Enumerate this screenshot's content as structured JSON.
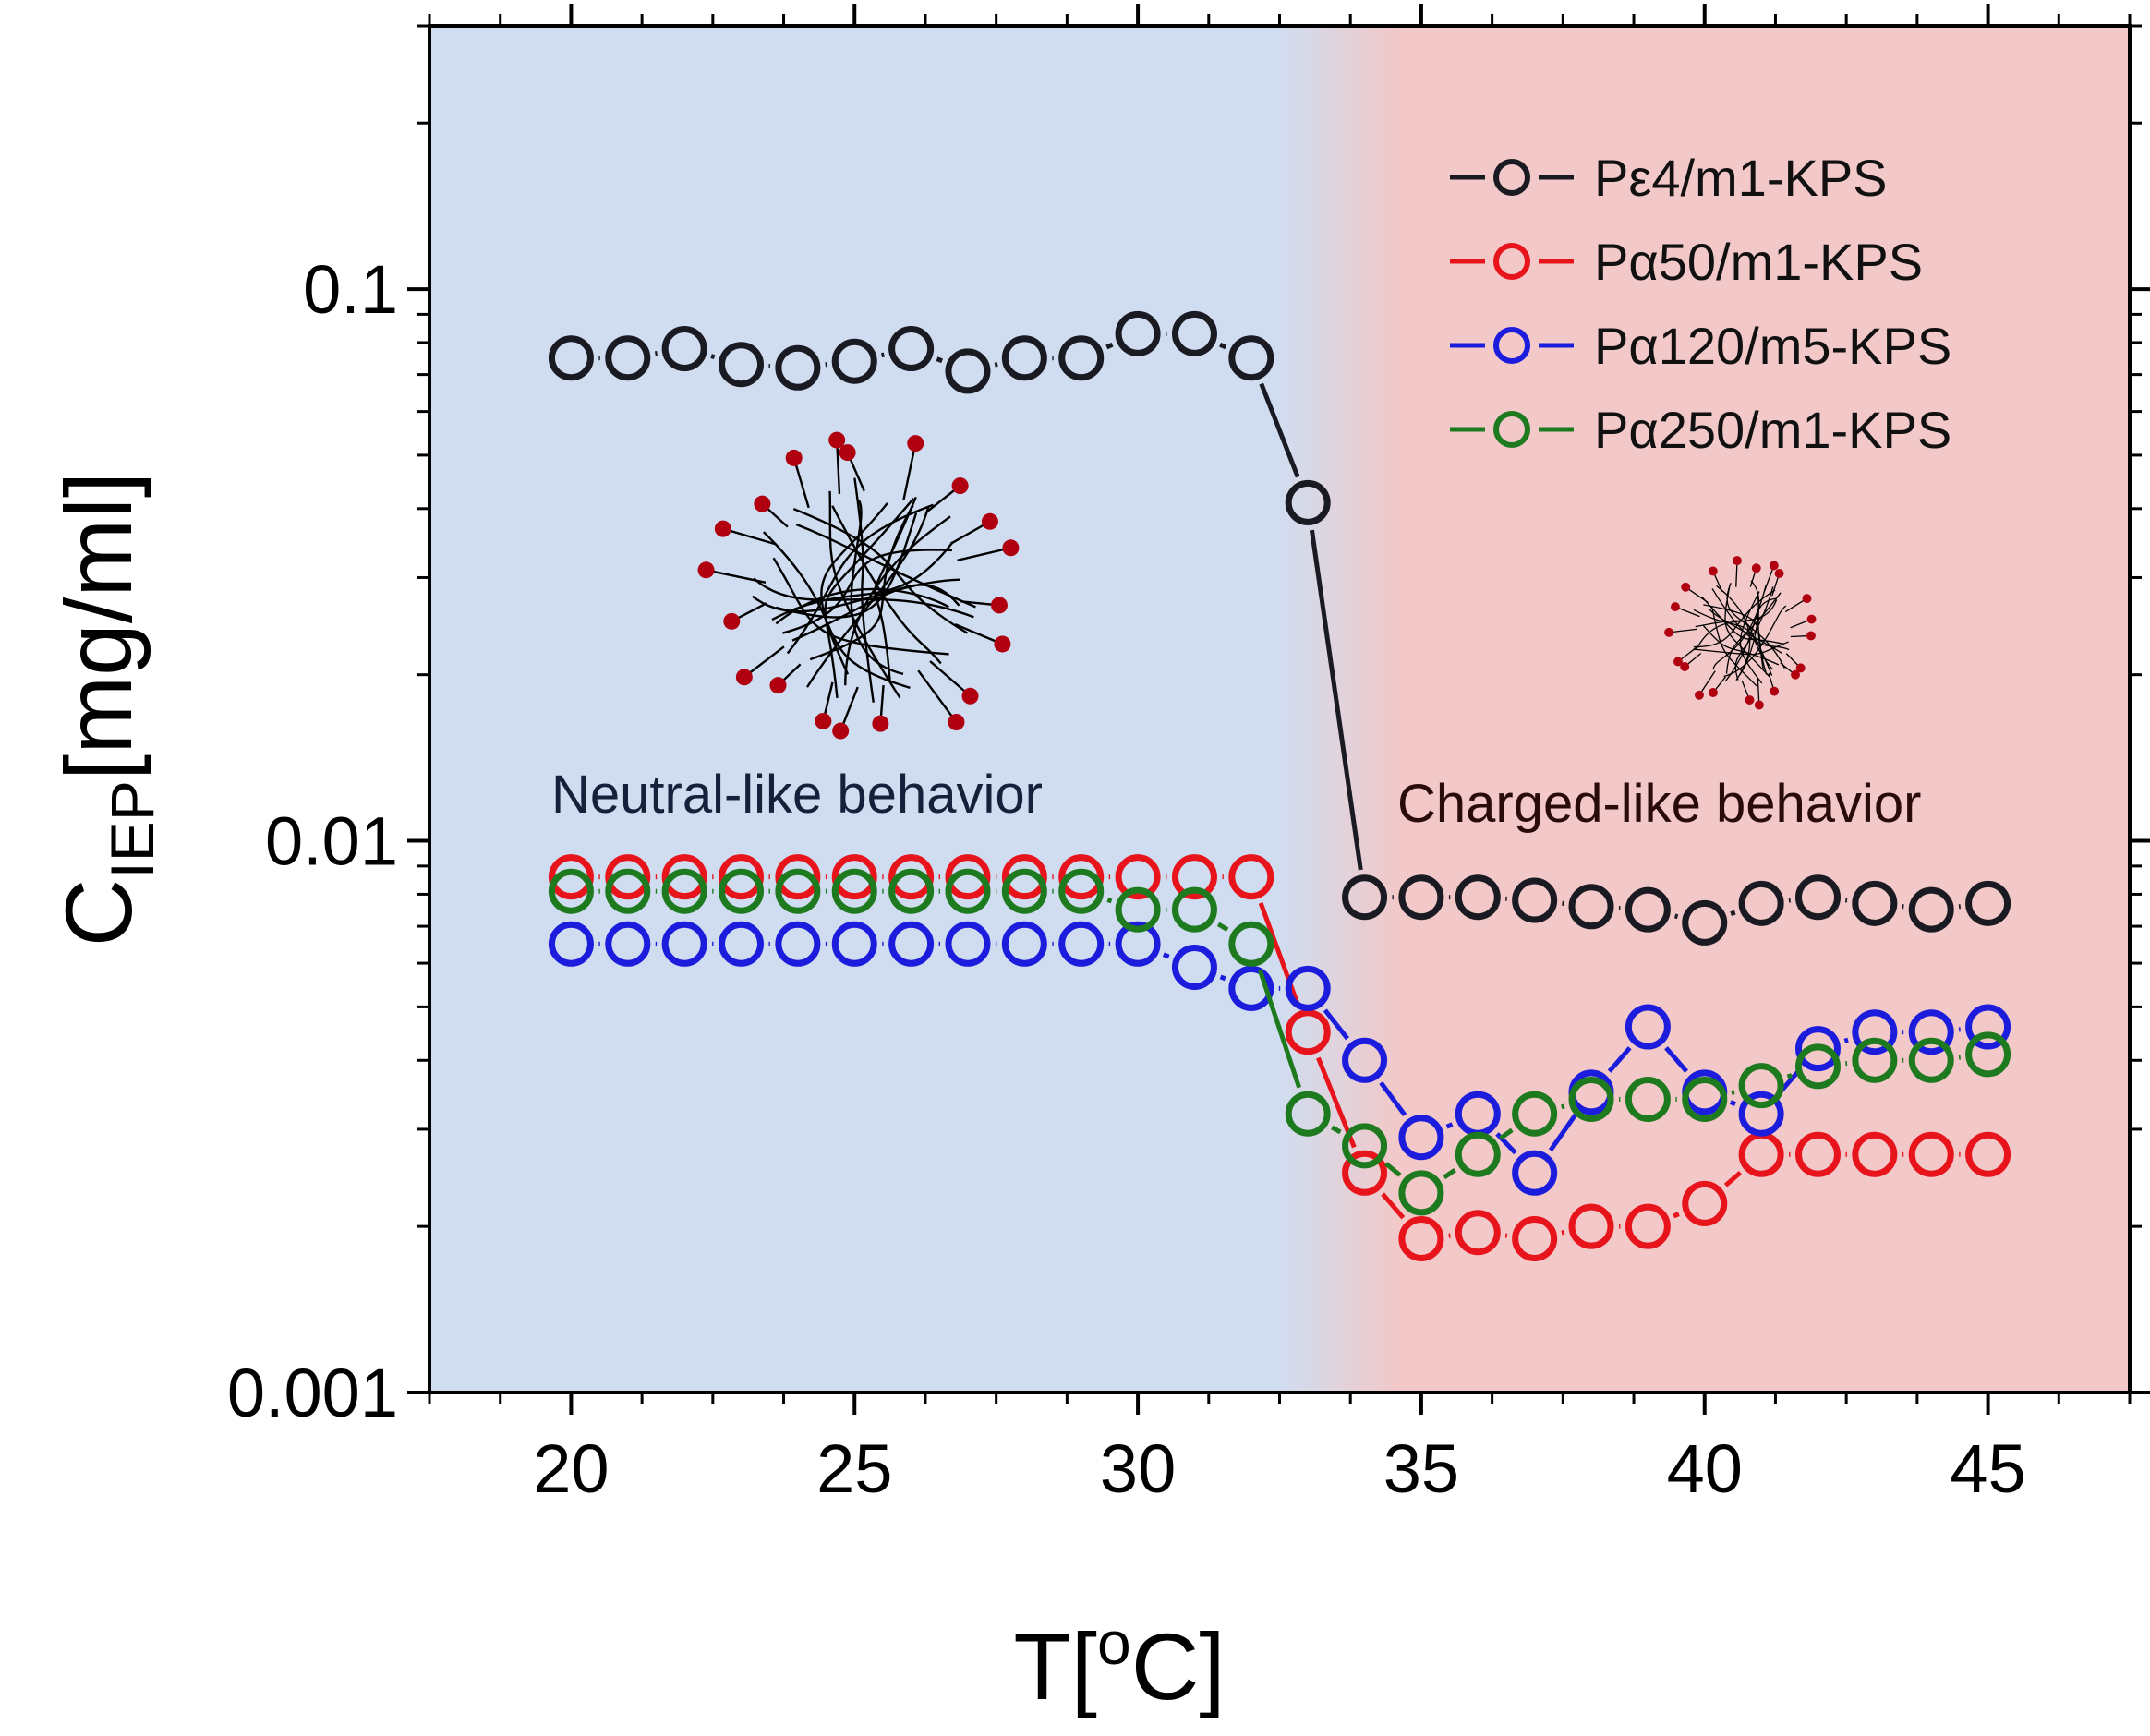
{
  "chart_data": {
    "type": "scatter",
    "title": "",
    "xlabel_main": "T[",
    "xlabel_sup": "o",
    "xlabel_end": "C]",
    "ylabel_main": "C",
    "ylabel_sub": "IEP",
    "ylabel_end": "[mg/ml]",
    "xlim": [
      17.5,
      47.5
    ],
    "ylim": [
      0.001,
      0.3
    ],
    "yscale": "log",
    "x_ticks": [
      20,
      25,
      30,
      35,
      40,
      45
    ],
    "x_tick_labels": [
      "20",
      "25",
      "30",
      "35",
      "40",
      "45"
    ],
    "y_ticks": [
      0.001,
      0.01,
      0.1
    ],
    "y_tick_labels": [
      "0.001",
      "0.01",
      "0.1"
    ],
    "legend_position": "top-right",
    "series": [
      {
        "name": "Pε4/m1-KPS",
        "color": "#1a1a22",
        "x": [
          20,
          21,
          22,
          23,
          24,
          25,
          26,
          27,
          28,
          29,
          30,
          31,
          32,
          33,
          34,
          35,
          36,
          37,
          38,
          39,
          40,
          41,
          42,
          43,
          44,
          45
        ],
        "values": [
          0.075,
          0.075,
          0.078,
          0.073,
          0.072,
          0.074,
          0.078,
          0.071,
          0.075,
          0.075,
          0.083,
          0.083,
          0.075,
          0.041,
          0.0079,
          0.0079,
          0.0079,
          0.0078,
          0.0076,
          0.0075,
          0.0071,
          0.0077,
          0.0079,
          0.0077,
          0.0075,
          0.0077
        ]
      },
      {
        "name": "Pα50/m1-KPS",
        "color": "#e8141c",
        "x": [
          20,
          21,
          22,
          23,
          24,
          25,
          26,
          27,
          28,
          29,
          30,
          31,
          32,
          33,
          34,
          35,
          36,
          37,
          38,
          39,
          40,
          41,
          42,
          43,
          44,
          45
        ],
        "values": [
          0.0086,
          0.0086,
          0.0086,
          0.0086,
          0.0086,
          0.0086,
          0.0086,
          0.0086,
          0.0086,
          0.0086,
          0.0086,
          0.0086,
          0.0086,
          0.0045,
          0.0025,
          0.0019,
          0.00195,
          0.0019,
          0.002,
          0.002,
          0.0022,
          0.0027,
          0.0027,
          0.0027,
          0.0027,
          0.0027
        ]
      },
      {
        "name": "Pα120/m5-KPS",
        "color": "#1c1cdc",
        "x": [
          20,
          21,
          22,
          23,
          24,
          25,
          26,
          27,
          28,
          29,
          30,
          31,
          32,
          33,
          34,
          35,
          36,
          37,
          38,
          39,
          40,
          41,
          42,
          43,
          44,
          45
        ],
        "values": [
          0.0065,
          0.0065,
          0.0065,
          0.0065,
          0.0065,
          0.0065,
          0.0065,
          0.0065,
          0.0065,
          0.0065,
          0.0065,
          0.0059,
          0.0054,
          0.0054,
          0.004,
          0.0029,
          0.0032,
          0.0025,
          0.0035,
          0.0046,
          0.0035,
          0.0032,
          0.0042,
          0.0045,
          0.0045,
          0.0046
        ]
      },
      {
        "name": "Pα250/m1-KPS",
        "color": "#1e7a1e",
        "x": [
          20,
          21,
          22,
          23,
          24,
          25,
          26,
          27,
          28,
          29,
          30,
          31,
          32,
          33,
          34,
          35,
          36,
          37,
          38,
          39,
          40,
          41,
          42,
          43,
          44,
          45
        ],
        "values": [
          0.0081,
          0.0081,
          0.0081,
          0.0081,
          0.0081,
          0.0081,
          0.0081,
          0.0081,
          0.0081,
          0.0081,
          0.0075,
          0.0075,
          0.0065,
          0.0032,
          0.0028,
          0.0023,
          0.0027,
          0.0032,
          0.0034,
          0.0034,
          0.0034,
          0.0036,
          0.0039,
          0.004,
          0.004,
          0.0041
        ]
      }
    ],
    "annotations": {
      "left_region": "Neutral-like behavior",
      "right_region": "Charged-like behavior"
    },
    "colors": {
      "neutral_bg": "#d0ddf0",
      "charged_bg": "#f2c8c8",
      "left_text": "#14213a",
      "right_text": "#2a0b0b",
      "chain": "#000000",
      "charge_dot": "#b00010"
    }
  }
}
